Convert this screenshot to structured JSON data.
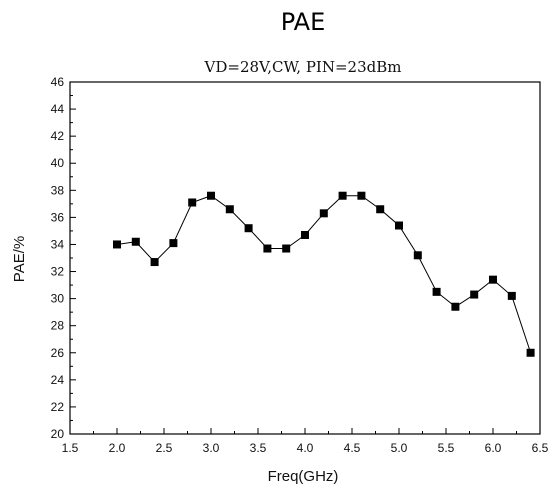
{
  "chart_data": {
    "type": "line",
    "title": "PAE",
    "subtitle": "VD=28V,CW, PIN=23dBm",
    "xlabel": "Freq(GHz)",
    "ylabel": "PAE/%",
    "xlim": [
      1.5,
      6.5
    ],
    "ylim": [
      20,
      46
    ],
    "x_ticks": [
      1.5,
      2.0,
      2.5,
      3.0,
      3.5,
      4.0,
      4.5,
      5.0,
      5.5,
      6.0,
      6.5
    ],
    "y_ticks": [
      20,
      22,
      24,
      26,
      28,
      30,
      32,
      34,
      36,
      38,
      40,
      42,
      44,
      46
    ],
    "x_tick_labels": [
      "1.5",
      "2.0",
      "2.5",
      "3.0",
      "3.5",
      "4.0",
      "4.5",
      "5.0",
      "5.5",
      "6.0",
      "6.5"
    ],
    "y_tick_labels": [
      "20",
      "22",
      "24",
      "26",
      "28",
      "30",
      "32",
      "34",
      "36",
      "38",
      "40",
      "42",
      "44",
      "46"
    ],
    "grid": false,
    "series": [
      {
        "x": [
          2.0,
          2.2,
          2.4,
          2.6,
          2.8,
          3.0,
          3.2,
          3.4,
          3.6,
          3.8,
          4.0,
          4.2,
          4.4,
          4.6,
          4.8,
          5.0,
          5.2,
          5.4,
          5.6,
          5.8,
          6.0,
          6.2,
          6.4
        ],
        "values": [
          34.0,
          34.2,
          32.7,
          34.1,
          37.1,
          37.6,
          36.6,
          35.2,
          33.7,
          33.7,
          34.7,
          36.3,
          37.6,
          37.6,
          36.6,
          35.4,
          33.2,
          30.5,
          29.4,
          30.3,
          31.4,
          30.2,
          26.0
        ],
        "color": "#000000",
        "marker": "square"
      }
    ]
  }
}
